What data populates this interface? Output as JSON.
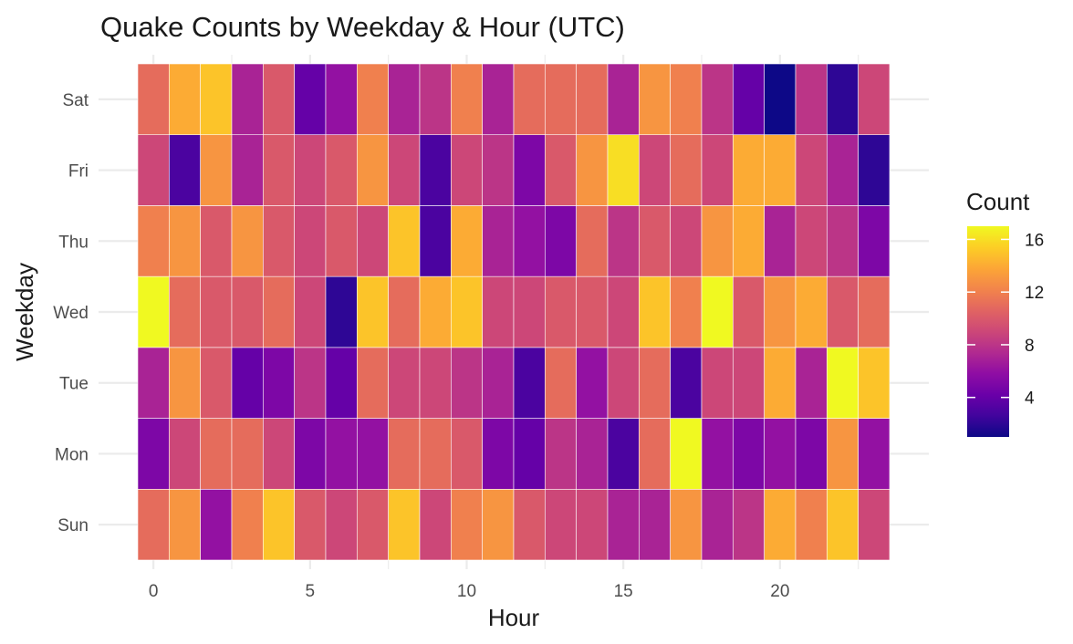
{
  "chart_data": {
    "type": "heatmap",
    "title": "Quake Counts by Weekday & Hour (UTC)",
    "xlabel": "Hour",
    "ylabel": "Weekday",
    "x": [
      0,
      1,
      2,
      3,
      4,
      5,
      6,
      7,
      8,
      9,
      10,
      11,
      12,
      13,
      14,
      15,
      16,
      17,
      18,
      19,
      20,
      21,
      22,
      23
    ],
    "x_ticks": [
      0,
      5,
      10,
      15,
      20
    ],
    "y": [
      "Sun",
      "Mon",
      "Tue",
      "Wed",
      "Thu",
      "Fri",
      "Sat"
    ],
    "values": [
      [
        11,
        13,
        6,
        12,
        15,
        10,
        9,
        10,
        15,
        9,
        12,
        13,
        10,
        9,
        9,
        7,
        7,
        13,
        7,
        8,
        14,
        12,
        15,
        9
      ],
      [
        5,
        9,
        11,
        11,
        9,
        5,
        6,
        6,
        11,
        11,
        10,
        5,
        4,
        8,
        7,
        3,
        11,
        17,
        6,
        5,
        6,
        5,
        13,
        6
      ],
      [
        7,
        13,
        10,
        4,
        5,
        8,
        4,
        11,
        9,
        9,
        8,
        7,
        3,
        11,
        6,
        9,
        11,
        3,
        9,
        9,
        14,
        7,
        17,
        15
      ],
      [
        17,
        11,
        10,
        10,
        11,
        9,
        2,
        15,
        11,
        14,
        15,
        9,
        9,
        10,
        10,
        9,
        15,
        12,
        17,
        10,
        13,
        14,
        10,
        11
      ],
      [
        12,
        13,
        10,
        13,
        10,
        9,
        10,
        9,
        15,
        3,
        14,
        7,
        6,
        5,
        11,
        8,
        10,
        9,
        13,
        14,
        7,
        9,
        8,
        5
      ],
      [
        9,
        3,
        13,
        7,
        10,
        9,
        10,
        13,
        9,
        3,
        9,
        8,
        5,
        10,
        13,
        16,
        9,
        11,
        9,
        14,
        14,
        9,
        7,
        2
      ],
      [
        11,
        14,
        15,
        7,
        10,
        4,
        6,
        12,
        7,
        8,
        12,
        7,
        11,
        11,
        11,
        7,
        13,
        12,
        8,
        4,
        1,
        8,
        2,
        9
      ]
    ],
    "value_range": [
      1,
      17
    ],
    "legend": {
      "title": "Count",
      "ticks": [
        4,
        8,
        12,
        16
      ],
      "position": "right"
    },
    "colorscale": "plasma",
    "colors": {
      "grid": "#ebebeb",
      "cell_border": "#ffffff"
    }
  }
}
